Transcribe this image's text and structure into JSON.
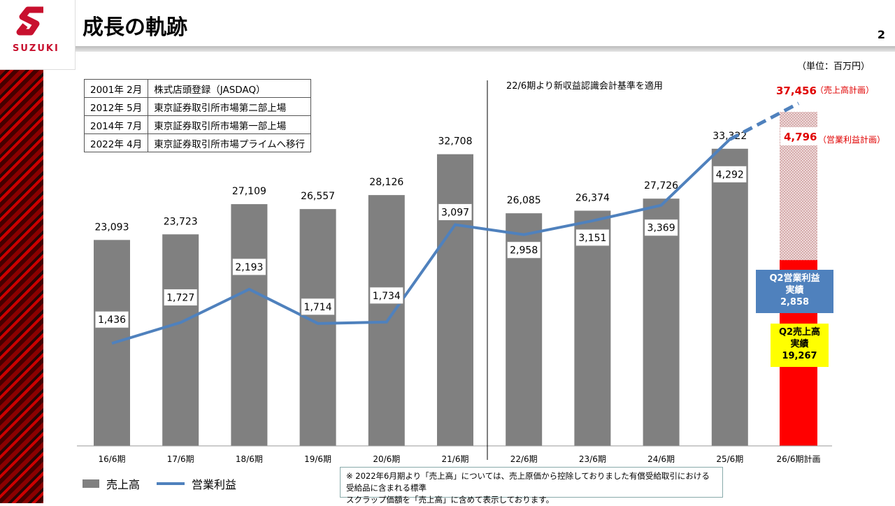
{
  "header": {
    "title": "成長の軌跡",
    "page": "2",
    "logo_text": "SUZUKI"
  },
  "unit": "（単位：百万円）",
  "history": [
    {
      "date": "2001年  2月",
      "event": "株式店頭登録（JASDAQ）"
    },
    {
      "date": "2012年  5月",
      "event": "東京証券取引所市場第二部上場"
    },
    {
      "date": "2014年  7月",
      "event": "東京証券取引所市場第一部上場"
    },
    {
      "date": "2022年  4月",
      "event": "東京証券取引所市場プライムへ移行"
    }
  ],
  "accounting_note": "22/6期より新収益認識会計基準を適用",
  "chart_data": {
    "type": "bar+line",
    "categories": [
      "16/6期",
      "17/6期",
      "18/6期",
      "19/6期",
      "20/6期",
      "21/6期",
      "22/6期",
      "23/6期",
      "24/6期",
      "25/6期",
      "26/6期計画"
    ],
    "series": [
      {
        "name": "売上高",
        "type": "bar",
        "color": "#808080",
        "values": [
          23093,
          23723,
          27109,
          26557,
          28126,
          32708,
          26085,
          26374,
          27726,
          33322,
          null
        ],
        "labels": [
          "23,093",
          "23,723",
          "27,109",
          "26,557",
          "28,126",
          "32,708",
          "26,085",
          "26,374",
          "27,726",
          "33,322",
          ""
        ]
      },
      {
        "name": "営業利益",
        "type": "line",
        "color": "#4f81bd",
        "values": [
          1436,
          1727,
          2193,
          1714,
          1734,
          3097,
          2958,
          3151,
          3369,
          4292,
          null
        ],
        "labels": [
          "1,436",
          "1,727",
          "2,193",
          "1,714",
          "1,734",
          "3,097",
          "2,958",
          "3,151",
          "3,369",
          "4,292",
          ""
        ]
      }
    ],
    "plan": {
      "sales": 37456,
      "sales_label": "37,456",
      "sales_caption": "（売上高計画）",
      "op_profit": 4796,
      "op_label": "4,796",
      "op_caption": "（営業利益計画）",
      "color": "#e00000"
    },
    "q2_actual": {
      "op_title": "Q2営業利益",
      "op_sub": "実績",
      "op_value": "2,858",
      "sales_title": "Q2売上高",
      "sales_sub": "実績",
      "sales_value": "19,267",
      "sales": 19267,
      "bar_color": "#ff0000"
    },
    "divider_after": "21/6期"
  },
  "legend": {
    "sales": "売上高",
    "op": "営業利益"
  },
  "footnote": {
    "line1": "※ 2022年6月期より「売上高」については、売上原価から控除しておりました有償受給取引における受給品に含まれる標準",
    "line2": "スクラップ価額を「売上高」に含めて表示しております。"
  }
}
